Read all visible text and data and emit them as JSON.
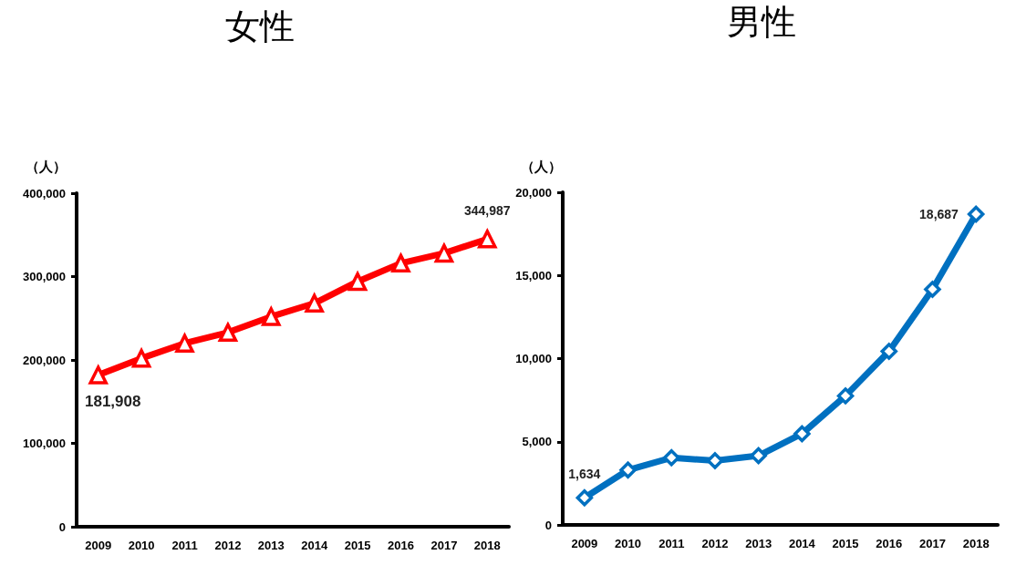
{
  "chart_data": [
    {
      "type": "line",
      "title": "女性",
      "ylabel": "（人）",
      "categories": [
        "2009",
        "2010",
        "2011",
        "2012",
        "2013",
        "2014",
        "2015",
        "2016",
        "2017",
        "2018"
      ],
      "series": [
        {
          "color": "#ff0000",
          "values": [
            181908,
            202000,
            220000,
            233000,
            252000,
            268000,
            294000,
            316000,
            328000,
            344987
          ],
          "value_labels": [
            "181,908",
            null,
            null,
            null,
            null,
            null,
            null,
            null,
            null,
            "344,987"
          ]
        }
      ],
      "ylim": [
        0,
        400000
      ],
      "yticks": [
        {
          "value": 0,
          "label": "0"
        },
        {
          "value": 100000,
          "label": "100,000"
        },
        {
          "value": 200000,
          "label": "200,000"
        },
        {
          "value": 300000,
          "label": "300,000"
        },
        {
          "value": 400000,
          "label": "400,000"
        }
      ],
      "grid": false,
      "marker": "triangle",
      "line_style": "solid"
    },
    {
      "type": "line",
      "title": "男性",
      "ylabel": "（人）",
      "categories": [
        "2009",
        "2010",
        "2011",
        "2012",
        "2013",
        "2014",
        "2015",
        "2016",
        "2017",
        "2018"
      ],
      "series": [
        {
          "color": "#0070c0",
          "values": [
            1634,
            3300,
            4040,
            3860,
            4160,
            5480,
            7760,
            10440,
            14160,
            18687
          ],
          "value_labels": [
            "1,634",
            null,
            null,
            null,
            null,
            null,
            null,
            null,
            null,
            "18,687"
          ]
        }
      ],
      "ylim": [
        0,
        20000
      ],
      "yticks": [
        {
          "value": 0,
          "label": "0"
        },
        {
          "value": 5000,
          "label": "5,000"
        },
        {
          "value": 10000,
          "label": "10,000"
        },
        {
          "value": 15000,
          "label": "15,000"
        },
        {
          "value": 20000,
          "label": "20,000"
        }
      ],
      "grid": false,
      "marker": "diamond",
      "line_style": "solid"
    }
  ]
}
